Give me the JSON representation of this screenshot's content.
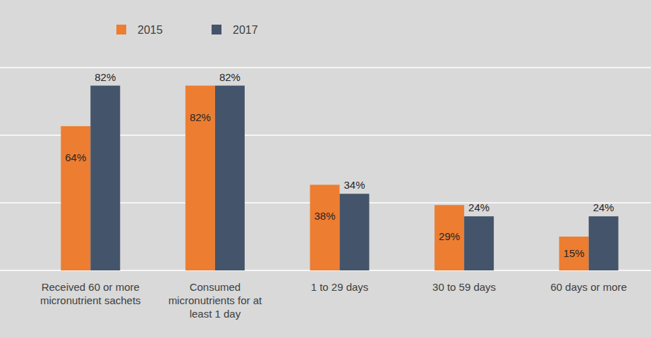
{
  "chart_data": {
    "type": "bar",
    "categories": [
      "Received 60 or more micronutrient sachets",
      "Consumed micronutrients for at least 1 day",
      "1 to 29 days",
      "30 to 59 days",
      "60 days or more"
    ],
    "series": [
      {
        "name": "2015",
        "color": "#ed7d31",
        "values": [
          64,
          82,
          38,
          29,
          15
        ],
        "value_labels": [
          "64%",
          "82%",
          "38%",
          "29%",
          "15%"
        ]
      },
      {
        "name": "2017",
        "color": "#44546a",
        "values": [
          82,
          82,
          34,
          24,
          24
        ],
        "value_labels": [
          "82%",
          "82%",
          "34%",
          "24%",
          "24%"
        ]
      }
    ],
    "ylim": [
      0,
      90
    ],
    "yticks": [
      0,
      30,
      60,
      90
    ],
    "grid": true,
    "tick_labels": false,
    "data_labels": true,
    "legend": "top"
  }
}
